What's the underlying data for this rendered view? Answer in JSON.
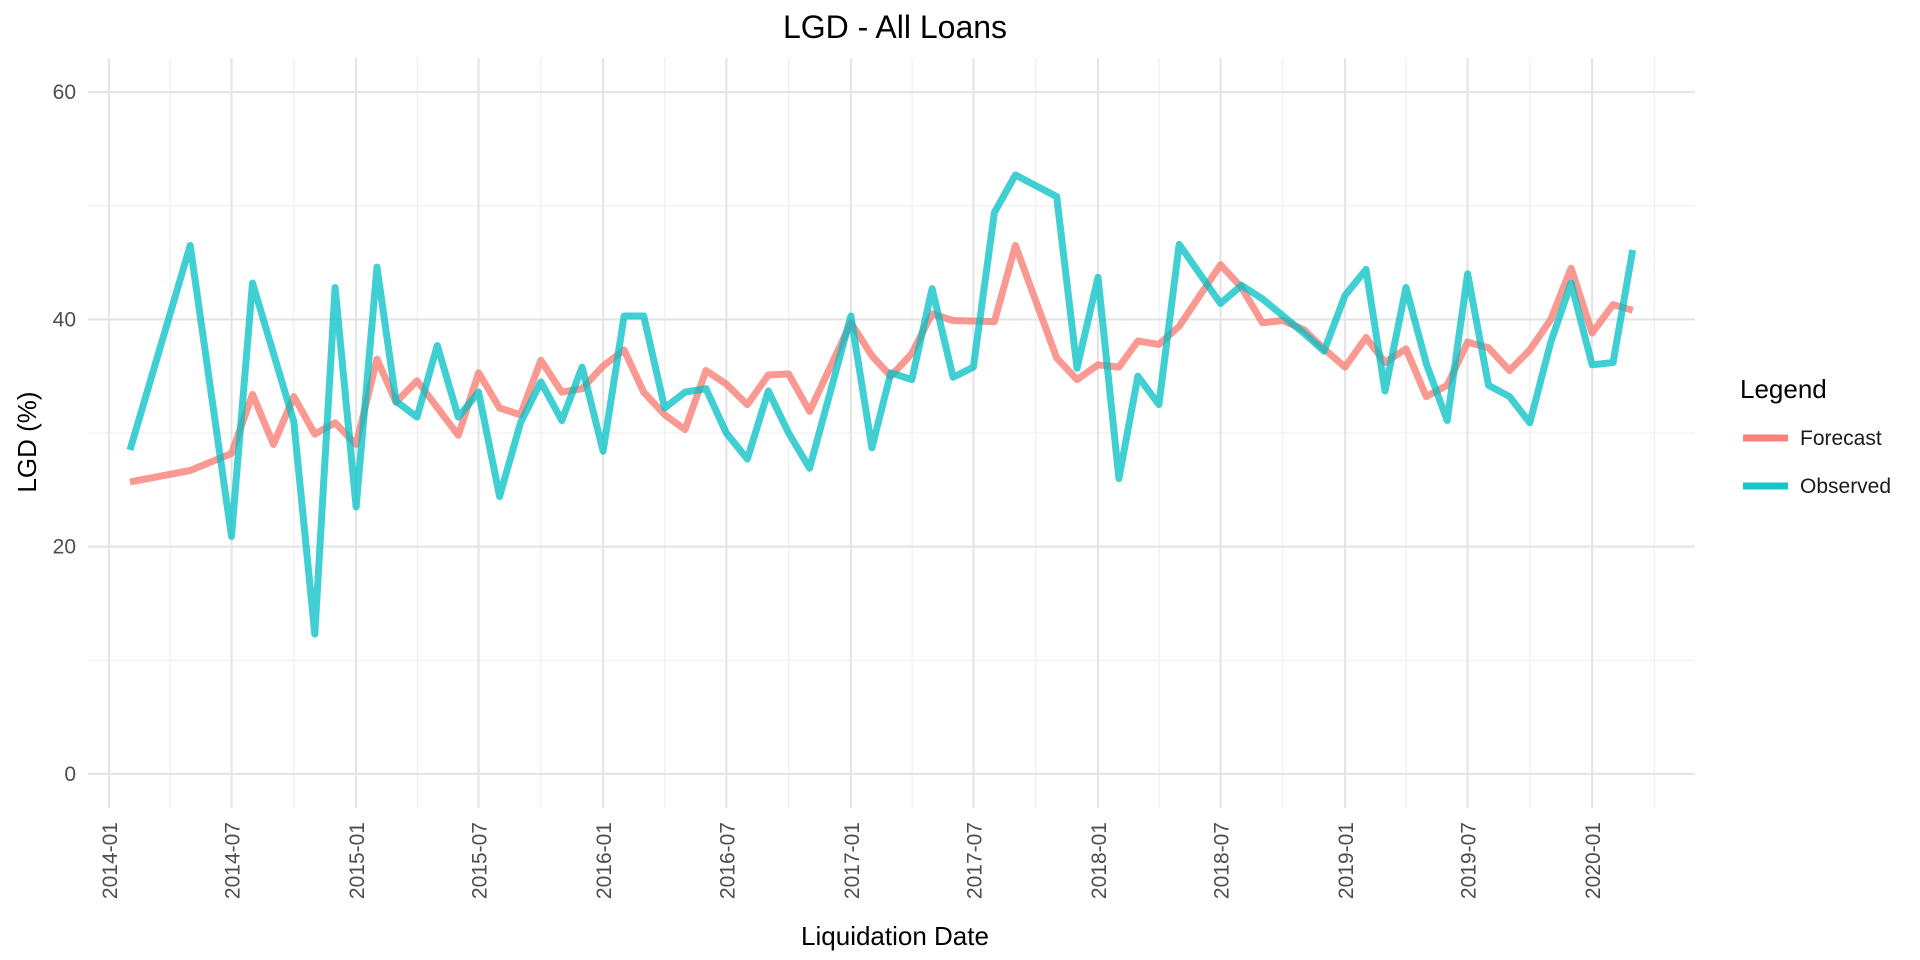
{
  "chart_data": {
    "type": "line",
    "title": "LGD - All Loans",
    "xlabel": "Liquidation Date",
    "ylabel": "LGD (%)",
    "x_format": "YYYY-MM",
    "x_range": [
      "2013-12-15",
      "2020-06-15"
    ],
    "ylim": [
      -3,
      63
    ],
    "x_ticks": [
      "2014-01",
      "2014-07",
      "2015-01",
      "2015-07",
      "2016-01",
      "2016-07",
      "2017-01",
      "2017-07",
      "2018-01",
      "2018-07",
      "2019-01",
      "2019-07",
      "2020-01"
    ],
    "y_ticks": [
      0,
      20,
      40,
      60
    ],
    "grid": true,
    "legend": {
      "title": "Legend",
      "position": "right"
    },
    "series": [
      {
        "name": "Forecast",
        "color": "#F8766D",
        "points": [
          [
            "2014-02",
            25.7
          ],
          [
            "2014-05",
            26.7
          ],
          [
            "2014-07",
            28.2
          ],
          [
            "2014-08",
            33.4
          ],
          [
            "2014-09",
            29.0
          ],
          [
            "2014-10",
            33.2
          ],
          [
            "2014-11",
            29.9
          ],
          [
            "2014-12",
            30.9
          ],
          [
            "2015-01",
            29.0
          ],
          [
            "2015-02",
            36.5
          ],
          [
            "2015-03",
            32.7
          ],
          [
            "2015-04",
            34.6
          ],
          [
            "2015-06",
            29.8
          ],
          [
            "2015-07",
            35.3
          ],
          [
            "2015-08",
            32.2
          ],
          [
            "2015-09",
            31.6
          ],
          [
            "2015-10",
            36.4
          ],
          [
            "2015-11",
            33.6
          ],
          [
            "2015-12",
            33.9
          ],
          [
            "2016-01",
            35.9
          ],
          [
            "2016-02",
            37.3
          ],
          [
            "2016-03",
            33.6
          ],
          [
            "2016-04",
            31.6
          ],
          [
            "2016-05",
            30.3
          ],
          [
            "2016-06",
            35.5
          ],
          [
            "2016-07",
            34.3
          ],
          [
            "2016-08",
            32.5
          ],
          [
            "2016-09",
            35.1
          ],
          [
            "2016-10",
            35.2
          ],
          [
            "2016-11",
            31.9
          ],
          [
            "2017-01",
            39.7
          ],
          [
            "2017-02",
            36.8
          ],
          [
            "2017-03",
            35.0
          ],
          [
            "2017-04",
            37.0
          ],
          [
            "2017-05",
            40.5
          ],
          [
            "2017-06",
            39.9
          ],
          [
            "2017-08",
            39.8
          ],
          [
            "2017-09",
            46.5
          ],
          [
            "2017-11",
            36.6
          ],
          [
            "2017-12",
            34.7
          ],
          [
            "2018-01",
            36.0
          ],
          [
            "2018-02",
            35.8
          ],
          [
            "2018-03",
            38.1
          ],
          [
            "2018-04",
            37.8
          ],
          [
            "2018-05",
            39.4
          ],
          [
            "2018-07",
            44.8
          ],
          [
            "2018-08",
            42.8
          ],
          [
            "2018-09",
            39.7
          ],
          [
            "2018-10",
            39.9
          ],
          [
            "2018-11",
            39.1
          ],
          [
            "2018-12",
            37.4
          ],
          [
            "2019-01",
            35.8
          ],
          [
            "2019-02",
            38.4
          ],
          [
            "2019-03",
            36.2
          ],
          [
            "2019-04",
            37.4
          ],
          [
            "2019-05",
            33.2
          ],
          [
            "2019-06",
            34.2
          ],
          [
            "2019-07",
            38.0
          ],
          [
            "2019-08",
            37.5
          ],
          [
            "2019-09",
            35.5
          ],
          [
            "2019-10",
            37.3
          ],
          [
            "2019-11",
            40.0
          ],
          [
            "2019-12",
            44.5
          ],
          [
            "2020-01",
            38.8
          ],
          [
            "2020-02",
            41.3
          ],
          [
            "2020-03",
            40.8
          ]
        ]
      },
      {
        "name": "Observed",
        "color": "#00BFC4",
        "points": [
          [
            "2014-02",
            28.5
          ],
          [
            "2014-05",
            46.5
          ],
          [
            "2014-07",
            20.9
          ],
          [
            "2014-08",
            43.2
          ],
          [
            "2014-10",
            31.0
          ],
          [
            "2014-11",
            12.3
          ],
          [
            "2014-12",
            42.8
          ],
          [
            "2015-01",
            23.5
          ],
          [
            "2015-02",
            44.6
          ],
          [
            "2015-03",
            32.8
          ],
          [
            "2015-04",
            31.4
          ],
          [
            "2015-05",
            37.7
          ],
          [
            "2015-06",
            31.4
          ],
          [
            "2015-07",
            33.6
          ],
          [
            "2015-08",
            24.4
          ],
          [
            "2015-09",
            30.9
          ],
          [
            "2015-10",
            34.5
          ],
          [
            "2015-11",
            31.1
          ],
          [
            "2015-12",
            35.8
          ],
          [
            "2016-01",
            28.4
          ],
          [
            "2016-02",
            40.3
          ],
          [
            "2016-03",
            40.3
          ],
          [
            "2016-04",
            32.2
          ],
          [
            "2016-05",
            33.6
          ],
          [
            "2016-06",
            33.9
          ],
          [
            "2016-07",
            30.0
          ],
          [
            "2016-08",
            27.7
          ],
          [
            "2016-09",
            33.7
          ],
          [
            "2016-10",
            30.0
          ],
          [
            "2016-11",
            26.9
          ],
          [
            "2017-01",
            40.3
          ],
          [
            "2017-02",
            28.7
          ],
          [
            "2017-03",
            35.3
          ],
          [
            "2017-04",
            34.7
          ],
          [
            "2017-05",
            42.7
          ],
          [
            "2017-06",
            34.9
          ],
          [
            "2017-07",
            35.8
          ],
          [
            "2017-08",
            49.4
          ],
          [
            "2017-09",
            52.7
          ],
          [
            "2017-11",
            50.8
          ],
          [
            "2017-12",
            35.7
          ],
          [
            "2018-01",
            43.7
          ],
          [
            "2018-02",
            26.0
          ],
          [
            "2018-03",
            35.0
          ],
          [
            "2018-04",
            32.5
          ],
          [
            "2018-05",
            46.6
          ],
          [
            "2018-07",
            41.4
          ],
          [
            "2018-08",
            43.0
          ],
          [
            "2018-09",
            41.8
          ],
          [
            "2018-11",
            38.8
          ],
          [
            "2018-12",
            37.2
          ],
          [
            "2019-01",
            42.1
          ],
          [
            "2019-02",
            44.4
          ],
          [
            "2019-03",
            33.7
          ],
          [
            "2019-04",
            42.8
          ],
          [
            "2019-05",
            36.1
          ],
          [
            "2019-06",
            31.1
          ],
          [
            "2019-07",
            44.0
          ],
          [
            "2019-08",
            34.2
          ],
          [
            "2019-09",
            33.2
          ],
          [
            "2019-10",
            30.9
          ],
          [
            "2019-11",
            38.0
          ],
          [
            "2019-12",
            43.2
          ],
          [
            "2020-01",
            36.0
          ],
          [
            "2020-02",
            36.2
          ],
          [
            "2020-03",
            46.1
          ]
        ]
      }
    ]
  }
}
